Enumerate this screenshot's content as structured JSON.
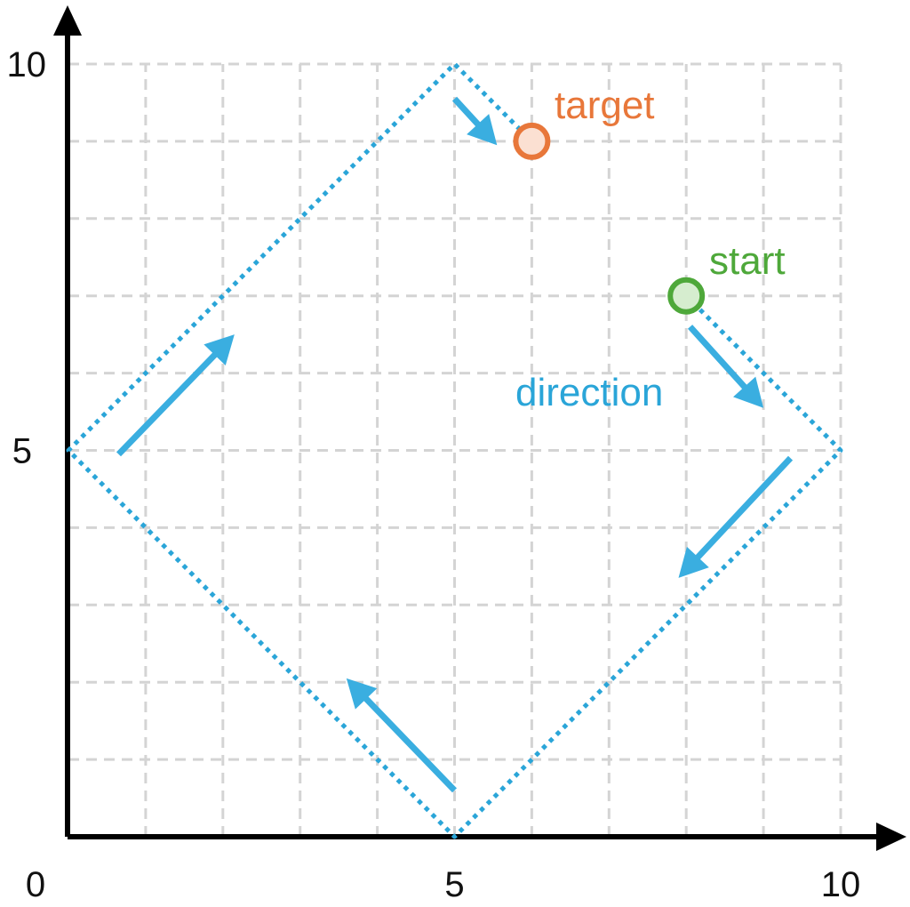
{
  "axes": {
    "x_ticks": [
      {
        "value": 0,
        "label": "0"
      },
      {
        "value": 5,
        "label": "5"
      },
      {
        "value": 10,
        "label": "10"
      }
    ],
    "y_ticks": [
      {
        "value": 5,
        "label": "5"
      },
      {
        "value": 10,
        "label": "10"
      }
    ],
    "range": [
      0,
      10
    ],
    "grid": true,
    "grid_step": 1
  },
  "colors": {
    "path": "#2aa5d8",
    "arrow": "#3aaee0",
    "target": "#e8773a",
    "target_fill": "#fbe0d2",
    "start": "#4ea83a",
    "start_fill": "#d6edcf",
    "direction_text": "#2aa5d8"
  },
  "path": {
    "points": [
      [
        8,
        7
      ],
      [
        10,
        5
      ],
      [
        5,
        0
      ],
      [
        0,
        5
      ],
      [
        5,
        10
      ],
      [
        6,
        9
      ]
    ]
  },
  "direction_arrows": [
    {
      "from": [
        8.05,
        6.6
      ],
      "to": [
        9.0,
        5.55
      ]
    },
    {
      "from": [
        9.35,
        4.9
      ],
      "to": [
        7.9,
        3.35
      ]
    },
    {
      "from": [
        5.0,
        0.6
      ],
      "to": [
        3.6,
        2.05
      ]
    },
    {
      "from": [
        0.65,
        4.95
      ],
      "to": [
        2.15,
        6.5
      ]
    },
    {
      "from": [
        5.0,
        9.55
      ],
      "to": [
        5.55,
        8.95
      ]
    }
  ],
  "target": {
    "label": "target",
    "point": [
      6,
      9
    ]
  },
  "start": {
    "label": "start",
    "point": [
      8,
      7
    ]
  },
  "direction": {
    "label": "direction"
  }
}
